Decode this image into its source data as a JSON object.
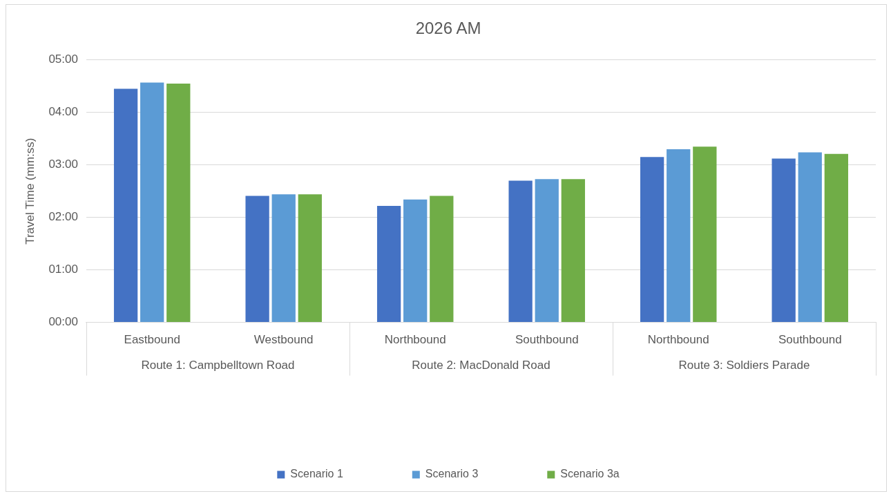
{
  "chart_data": {
    "type": "bar",
    "title": "2026 AM",
    "ylabel": "Travel Time (mm:ss)",
    "categories": [
      "Eastbound",
      "Westbound",
      "Northbound",
      "Southbound",
      "Northbound",
      "Southbound"
    ],
    "annotations": [
      "Route 1: Campbelltown Road",
      "Route 2: MacDonald Road",
      "Route 3: Soldiers Parade"
    ],
    "series": [
      {
        "name": "Scenario 1",
        "color": "#4472c4",
        "values": [
          4.45,
          2.41,
          2.22,
          2.7,
          3.15,
          3.12
        ]
      },
      {
        "name": "Scenario 3",
        "color": "#5b9bd5",
        "values": [
          4.57,
          2.44,
          2.34,
          2.73,
          3.3,
          3.24
        ]
      },
      {
        "name": "Scenario 3a",
        "color": "#70ad47",
        "values": [
          4.55,
          2.44,
          2.41,
          2.73,
          3.35,
          3.21
        ]
      }
    ],
    "ylim": [
      0,
      5
    ],
    "yticks": [
      {
        "value": 0,
        "label": "00:00"
      },
      {
        "value": 1,
        "label": "01:00"
      },
      {
        "value": 2,
        "label": "02:00"
      },
      {
        "value": 3,
        "label": "03:00"
      },
      {
        "value": 4,
        "label": "04:00"
      },
      {
        "value": 5,
        "label": "05:00"
      }
    ],
    "grid": "y",
    "legend": "bottom"
  }
}
